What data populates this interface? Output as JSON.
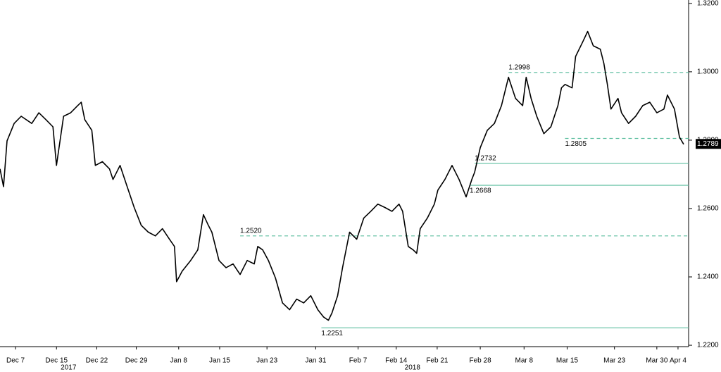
{
  "chart_data": {
    "type": "line",
    "color": "#000000",
    "ref_color": "#5fbfa0",
    "xlim": [
      0,
      97.5
    ],
    "ylim": [
      1.2196,
      1.321
    ],
    "xticks": [
      {
        "value": 2.2,
        "label": "Dec 7"
      },
      {
        "value": 8.0,
        "label": "Dec 15"
      },
      {
        "value": 13.7,
        "label": "Dec 22"
      },
      {
        "value": 19.3,
        "label": "Dec 29"
      },
      {
        "value": 25.3,
        "label": "Jan 8"
      },
      {
        "value": 31.1,
        "label": "Jan 15"
      },
      {
        "value": 37.8,
        "label": "Jan 23"
      },
      {
        "value": 44.7,
        "label": "Jan 31"
      },
      {
        "value": 50.7,
        "label": "Feb 7"
      },
      {
        "value": 56.1,
        "label": "Feb 14"
      },
      {
        "value": 61.9,
        "label": "Feb 21"
      },
      {
        "value": 68.0,
        "label": "Feb 28"
      },
      {
        "value": 74.2,
        "label": "Mar 8"
      },
      {
        "value": 80.3,
        "label": "Mar 15"
      },
      {
        "value": 87.0,
        "label": "Mar 23"
      },
      {
        "value": 93.0,
        "label": "Mar 30"
      },
      {
        "value": 96.0,
        "label": "Apr 4"
      }
    ],
    "year_labels": [
      {
        "value": 9.7,
        "label": "2017"
      },
      {
        "value": 58.4,
        "label": "2018"
      }
    ],
    "yticks": [
      {
        "value": 1.22,
        "label": "1.2200"
      },
      {
        "value": 1.24,
        "label": "1.2400"
      },
      {
        "value": 1.26,
        "label": "1.2600"
      },
      {
        "value": 1.28,
        "label": "1.2800"
      },
      {
        "value": 1.3,
        "label": "1.3000"
      },
      {
        "value": 1.32,
        "label": "1.3200"
      }
    ],
    "reference_lines": [
      {
        "value": 1.2998,
        "label": "1.2998",
        "start": 72.0,
        "style": "dashed",
        "label_position": "above"
      },
      {
        "value": 1.2805,
        "label": "1.2805",
        "start": 80.0,
        "style": "dashed",
        "label_position": "below"
      },
      {
        "value": 1.2732,
        "label": "1.2732",
        "start": 67.2,
        "style": "solid",
        "label_position": "above"
      },
      {
        "value": 1.2668,
        "label": "1.2668",
        "start": 66.5,
        "style": "solid",
        "label_position": "below"
      },
      {
        "value": 1.252,
        "label": "1.2520",
        "start": 34.0,
        "style": "dashed",
        "label_position": "above"
      },
      {
        "value": 1.2251,
        "label": "1.2251",
        "start": 45.5,
        "style": "solid",
        "label_position": "below"
      }
    ],
    "last_price": {
      "value": 1.2789,
      "label": "1.2789"
    },
    "x": [
      0.0,
      0.5,
      1.0,
      2.0,
      3.0,
      4.5,
      5.5,
      6.5,
      7.5,
      8.0,
      9.0,
      10.0,
      11.0,
      11.5,
      12.0,
      13.0,
      13.5,
      14.5,
      15.5,
      16.0,
      17.0,
      18.0,
      19.0,
      20.0,
      21.0,
      22.0,
      23.0,
      24.0,
      24.7,
      25.0,
      25.8,
      27.0,
      28.0,
      28.8,
      29.5,
      30.0,
      31.0,
      32.0,
      33.0,
      34.0,
      35.0,
      36.0,
      36.5,
      37.2,
      38.0,
      39.0,
      40.0,
      41.0,
      42.0,
      43.0,
      44.0,
      45.0,
      45.8,
      46.5,
      47.0,
      47.8,
      48.5,
      49.5,
      50.5,
      51.5,
      52.5,
      53.5,
      54.5,
      55.5,
      56.5,
      57.0,
      57.8,
      58.5,
      59.0,
      59.5,
      60.5,
      61.5,
      62.0,
      63.0,
      64.0,
      65.0,
      66.0,
      66.8,
      67.2,
      68.0,
      69.0,
      70.0,
      71.0,
      72.0,
      73.0,
      74.0,
      74.5,
      75.2,
      76.0,
      77.0,
      78.0,
      79.0,
      79.5,
      80.0,
      81.0,
      81.5,
      82.5,
      83.2,
      84.0,
      85.0,
      85.5,
      86.0,
      86.5,
      87.5,
      88.0,
      89.0,
      90.0,
      91.0,
      92.0,
      93.0,
      94.0,
      94.5,
      95.5,
      96.2,
      96.8
    ],
    "values": [
      1.2716,
      1.2664,
      1.2798,
      1.2849,
      1.287,
      1.2849,
      1.288,
      1.286,
      1.2839,
      1.2726,
      1.287,
      1.288,
      1.2901,
      1.2911,
      1.286,
      1.2829,
      1.2726,
      1.2737,
      1.2716,
      1.2685,
      1.2726,
      1.2664,
      1.2603,
      1.2551,
      1.2531,
      1.252,
      1.2541,
      1.251,
      1.2489,
      1.2386,
      1.2417,
      1.2448,
      1.2479,
      1.2582,
      1.2551,
      1.2531,
      1.2448,
      1.2427,
      1.2438,
      1.2407,
      1.2448,
      1.2438,
      1.2489,
      1.2479,
      1.2448,
      1.2397,
      1.2324,
      1.2304,
      1.2335,
      1.2324,
      1.2345,
      1.2304,
      1.2283,
      1.2273,
      1.2294,
      1.2345,
      1.2427,
      1.2531,
      1.251,
      1.2572,
      1.2592,
      1.2613,
      1.2603,
      1.2592,
      1.2613,
      1.2592,
      1.2489,
      1.2479,
      1.2469,
      1.2541,
      1.2572,
      1.2613,
      1.2654,
      1.2685,
      1.2726,
      1.2685,
      1.2634,
      1.2685,
      1.2706,
      1.2778,
      1.2829,
      1.2849,
      1.2901,
      1.2984,
      1.2922,
      1.2901,
      1.2984,
      1.2922,
      1.287,
      1.2819,
      1.2839,
      1.2901,
      1.2953,
      1.2963,
      1.2953,
      1.3045,
      1.3087,
      1.3118,
      1.3076,
      1.3066,
      1.3025,
      1.2963,
      1.2891,
      1.2922,
      1.288,
      1.2849,
      1.287,
      1.2901,
      1.2911,
      1.288,
      1.2891,
      1.2932,
      1.2891,
      1.2809,
      1.2788
    ]
  }
}
